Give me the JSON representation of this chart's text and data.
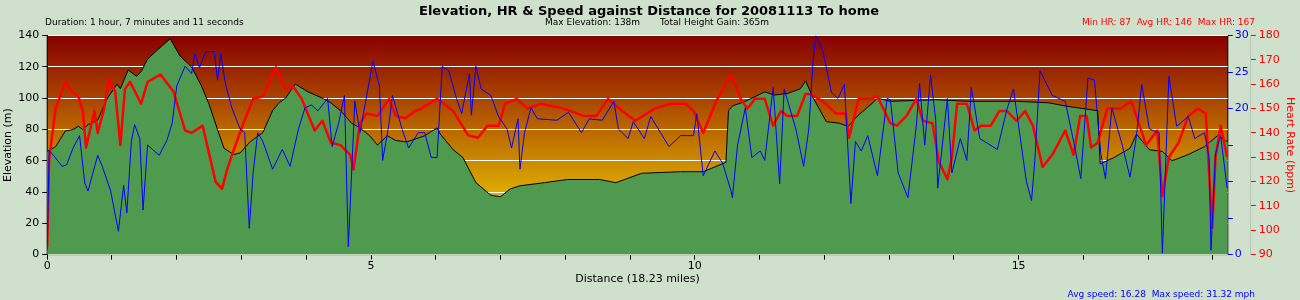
{
  "chart_data": {
    "type": "line",
    "title": "Elevation, HR & Speed against Distance for 20081113 To home",
    "annotations": [
      "Duration: 1 hour, 7 minutes and 11 seconds",
      "Max Elevation: 138m",
      "Total Height Gain: 365m",
      "Min HR: 87  Avg HR: 146  Max HR: 167",
      "Avg speed: 16.28  Max speed: 31.32 mph"
    ],
    "xlabel": "Distance (18.23 miles)",
    "ylabel": "Elevation (m)",
    "y2label": "Heart Rate (bpm)",
    "xlim": [
      0,
      18.23
    ],
    "xticks": [
      0,
      {
        "value": 1,
        "label": null
      },
      {
        "value": 2,
        "label": null
      },
      {
        "value": 3,
        "label": null
      },
      {
        "value": 4,
        "label": null
      },
      5,
      {
        "value": 6,
        "label": null
      },
      {
        "value": 7,
        "label": null
      },
      {
        "value": 8,
        "label": null
      },
      {
        "value": 9,
        "label": null
      },
      10,
      {
        "value": 11,
        "label": null
      },
      {
        "value": 12,
        "label": null
      },
      {
        "value": 13,
        "label": null
      },
      {
        "value": 14,
        "label": null
      },
      15,
      {
        "value": 16,
        "label": null
      },
      {
        "value": 17,
        "label": null
      },
      {
        "value": 18,
        "label": null
      }
    ],
    "ylim": [
      0,
      140
    ],
    "yticks": [
      0,
      20,
      40,
      60,
      80,
      100,
      120,
      140
    ],
    "y2lim": [
      90,
      180
    ],
    "y2ticks": [
      90,
      100,
      110,
      120,
      130,
      140,
      150,
      160,
      170,
      180
    ],
    "y3lim": [
      0,
      30
    ],
    "y3ticks": [
      0,
      {
        "value": 5,
        "label": null
      },
      {
        "value": 10,
        "label": null
      },
      {
        "value": 15,
        "label": null
      },
      20,
      25,
      30
    ],
    "grid": "y",
    "marker": "none",
    "line_style": "solid",
    "series": [
      {
        "type": "area",
        "color": "#4f9a4f",
        "x": [
          0,
          0.13,
          0.28,
          0.4,
          0.48,
          0.55,
          0.63,
          0.78,
          0.93,
          1.08,
          1.13,
          1.25,
          1.38,
          1.45,
          1.55,
          1.68,
          1.9,
          2.05,
          2.23,
          2.38,
          2.5,
          2.63,
          2.73,
          2.88,
          2.98,
          3.13,
          3.33,
          3.48,
          3.58,
          3.68,
          3.83,
          4.03,
          4.25,
          4.38,
          4.53,
          4.7,
          4.83,
          4.98,
          5.1,
          5.25,
          5.38,
          5.55,
          5.83,
          6.02,
          6.07,
          6.27,
          6.42,
          6.62,
          6.85,
          7.0,
          7.15,
          7.3,
          7.68,
          8.03,
          8.53,
          8.78,
          9.18,
          9.78,
          10.13,
          10.48,
          10.52,
          10.58,
          10.78,
          11.08,
          11.23,
          11.43,
          11.63,
          11.71,
          11.83,
          12.03,
          12.23,
          12.37,
          12.52,
          12.72,
          12.82,
          13.02,
          13.72,
          14.22,
          14.97,
          15.47,
          15.72,
          16.22,
          16.26,
          16.47,
          16.72,
          16.82,
          17.02,
          17.22,
          17.37,
          17.62,
          17.87,
          18.07,
          18.23
        ],
        "values": [
          66,
          69,
          79,
          80,
          82,
          80,
          83,
          86,
          100,
          109,
          106,
          118,
          114,
          117,
          125,
          130,
          138,
          127,
          120,
          108,
          96,
          80,
          68,
          64,
          65,
          72,
          78,
          92,
          97,
          100,
          109,
          104,
          100,
          97,
          92,
          84,
          81,
          76,
          70,
          76,
          73,
          72,
          76,
          81,
          77,
          67,
          62,
          46,
          38,
          37,
          42,
          44,
          46,
          48,
          48,
          46,
          52,
          53,
          53,
          59,
          92,
          95,
          98,
          104,
          102,
          103,
          106,
          111,
          100,
          85,
          84,
          82,
          89,
          96,
          100,
          98,
          99,
          98,
          98,
          97,
          95,
          92,
          58,
          62,
          68,
          77,
          67,
          66,
          60,
          64,
          69,
          76,
          72
        ]
      },
      {
        "type": "line",
        "axis": "y2",
        "color": "#ff0000",
        "x": [
          0,
          0.03,
          0.13,
          0.28,
          0.38,
          0.48,
          0.55,
          0.6,
          0.73,
          0.78,
          0.88,
          0.95,
          1.05,
          1.13,
          1.2,
          1.28,
          1.45,
          1.55,
          1.75,
          1.95,
          2.13,
          2.23,
          2.4,
          2.6,
          2.7,
          2.78,
          2.88,
          3.03,
          3.18,
          3.33,
          3.53,
          3.68,
          3.8,
          3.93,
          4.13,
          4.25,
          4.38,
          4.53,
          4.68,
          4.73,
          4.83,
          4.93,
          5.1,
          5.28,
          5.38,
          5.53,
          5.68,
          5.77,
          6.02,
          6.27,
          6.5,
          6.65,
          6.8,
          6.97,
          7.07,
          7.25,
          7.42,
          7.62,
          7.98,
          8.28,
          8.48,
          8.66,
          8.88,
          9.08,
          9.38,
          9.63,
          9.86,
          9.98,
          10.13,
          10.33,
          10.56,
          10.71,
          10.81,
          10.93,
          11.08,
          11.21,
          11.33,
          11.43,
          11.58,
          11.71,
          11.78,
          11.98,
          12.18,
          12.33,
          12.38,
          12.53,
          12.72,
          12.82,
          13.02,
          13.12,
          13.27,
          13.42,
          13.52,
          13.67,
          13.77,
          13.9,
          13.97,
          14.05,
          14.2,
          14.32,
          14.42,
          14.57,
          14.7,
          14.82,
          14.97,
          15.1,
          15.22,
          15.37,
          15.52,
          15.72,
          15.85,
          15.95,
          16.05,
          16.12,
          16.22,
          16.37,
          16.57,
          16.74,
          16.97,
          17.14,
          17.22,
          17.32,
          17.47,
          17.62,
          17.77,
          17.89,
          17.99,
          18.04,
          18.12,
          18.22
        ],
        "values": [
          93,
          129,
          150,
          161,
          157,
          155,
          149,
          134,
          149,
          140,
          150,
          162,
          157,
          135,
          158,
          161,
          152,
          161,
          164,
          157,
          141,
          140,
          143,
          120,
          117,
          125,
          133,
          144,
          154,
          155,
          167,
          158,
          159,
          154,
          141,
          145,
          136,
          135,
          131,
          125,
          144,
          148,
          147,
          154,
          147,
          146,
          149,
          150,
          154,
          149,
          139,
          138,
          143,
          143,
          152,
          154,
          150,
          152,
          150,
          147,
          147,
          154,
          149,
          145,
          150,
          152,
          152,
          149,
          140,
          153,
          164,
          154,
          150,
          154,
          154,
          143,
          149,
          147,
          147,
          156,
          156,
          153,
          148,
          148,
          138,
          154,
          154,
          155,
          144,
          143,
          147,
          154,
          145,
          144,
          128,
          121,
          130,
          152,
          152,
          141,
          143,
          143,
          149,
          149,
          145,
          149,
          143,
          126,
          131,
          141,
          131,
          147,
          147,
          134,
          136,
          150,
          150,
          153,
          135,
          141,
          114,
          130,
          136,
          147,
          150,
          148,
          101,
          130,
          143,
          130
        ]
      },
      {
        "type": "line",
        "axis": "y3",
        "color": "#0000ff",
        "x": [
          0,
          0.03,
          0.08,
          0.23,
          0.3,
          0.4,
          0.5,
          0.58,
          0.63,
          0.7,
          0.78,
          0.85,
          0.98,
          1.1,
          1.18,
          1.23,
          1.3,
          1.35,
          1.43,
          1.48,
          1.55,
          1.73,
          1.85,
          1.93,
          2.0,
          2.13,
          2.23,
          2.28,
          2.35,
          2.45,
          2.58,
          2.63,
          2.68,
          2.75,
          2.85,
          2.98,
          3.05,
          3.12,
          3.18,
          3.25,
          3.33,
          3.48,
          3.63,
          3.75,
          3.88,
          3.98,
          4.08,
          4.18,
          4.33,
          4.4,
          4.5,
          4.59,
          4.65,
          4.75,
          4.83,
          5.03,
          5.13,
          5.18,
          5.28,
          5.33,
          5.48,
          5.58,
          5.73,
          5.83,
          5.93,
          6.02,
          6.1,
          6.2,
          6.32,
          6.4,
          6.52,
          6.55,
          6.62,
          6.7,
          6.85,
          6.97,
          7.1,
          7.17,
          7.27,
          7.3,
          7.37,
          7.47,
          7.57,
          7.87,
          8.05,
          8.25,
          8.37,
          8.57,
          8.75,
          8.82,
          8.97,
          9.05,
          9.22,
          9.32,
          9.47,
          9.6,
          9.78,
          9.98,
          10.03,
          10.13,
          10.31,
          10.43,
          10.56,
          10.58,
          10.66,
          10.78,
          10.88,
          11.01,
          11.08,
          11.21,
          11.31,
          11.38,
          11.56,
          11.68,
          11.76,
          11.83,
          11.87,
          11.98,
          12.11,
          12.21,
          12.31,
          12.41,
          12.48,
          12.57,
          12.67,
          12.82,
          12.97,
          13.02,
          13.14,
          13.29,
          13.42,
          13.47,
          13.55,
          13.64,
          13.72,
          13.75,
          13.9,
          13.97,
          14.1,
          14.2,
          14.27,
          14.4,
          14.67,
          14.82,
          14.92,
          15.12,
          15.2,
          15.25,
          15.33,
          15.52,
          15.72,
          15.87,
          15.96,
          16.07,
          16.17,
          16.27,
          16.34,
          16.44,
          16.6,
          16.72,
          16.82,
          16.9,
          17.02,
          17.17,
          17.22,
          17.32,
          17.44,
          17.62,
          17.72,
          17.87,
          17.94,
          17.97,
          18.04,
          18.12,
          18.22
        ],
        "values": [
          0.6,
          14.2,
          13.8,
          12.1,
          12.3,
          14.6,
          16.3,
          9.8,
          8.7,
          11,
          13.6,
          12.1,
          8.7,
          3.2,
          9.5,
          5.7,
          15.5,
          17.8,
          15.9,
          6.1,
          15,
          13.6,
          15.7,
          18,
          23.1,
          25.8,
          24.8,
          27.5,
          25.6,
          27.8,
          27.8,
          23.9,
          27.5,
          23.5,
          20.1,
          17.2,
          16.7,
          3.6,
          11.2,
          16.7,
          15.5,
          11.7,
          14.4,
          12.1,
          17.2,
          20.1,
          20.5,
          19.7,
          21.4,
          14.8,
          18,
          21.8,
          1.1,
          21,
          16.7,
          26.5,
          23.1,
          12.9,
          18,
          21.8,
          17.2,
          14.6,
          16.7,
          16.7,
          13.3,
          13.3,
          25.8,
          25.2,
          21.4,
          19.3,
          24.8,
          19.1,
          25.8,
          22.7,
          21.8,
          18.9,
          17.2,
          14.6,
          18.6,
          11.7,
          16.7,
          20.1,
          18.6,
          18.4,
          19.5,
          16.7,
          18.6,
          18.4,
          21,
          17.2,
          15.9,
          18.2,
          15.9,
          18.9,
          16.7,
          14.8,
          16.3,
          16.3,
          19.3,
          10.8,
          14.2,
          12.5,
          8.7,
          7.8,
          15,
          20.1,
          13.3,
          14.2,
          12.9,
          22.9,
          9.7,
          22.7,
          17.2,
          12.1,
          17.2,
          27.1,
          30,
          27.8,
          22.2,
          21.4,
          23.3,
          7,
          15.5,
          14.2,
          16.3,
          10.8,
          21.4,
          21.2,
          11.2,
          7.8,
          17.6,
          23.5,
          15,
          24.6,
          18.4,
          9.1,
          21.4,
          11.2,
          15.9,
          12.9,
          22.9,
          15.9,
          14.4,
          19.9,
          22.7,
          10,
          7.4,
          12.9,
          25.2,
          21.8,
          21,
          14.6,
          10.4,
          24.2,
          23.9,
          13.8,
          10.4,
          20.1,
          15,
          10.6,
          16.3,
          23.3,
          17.2,
          16.7,
          0.2,
          24.4,
          17.6,
          18.9,
          15.9,
          16.7,
          13.3,
          0.6,
          13.8,
          16.3,
          9.1
        ]
      }
    ]
  }
}
